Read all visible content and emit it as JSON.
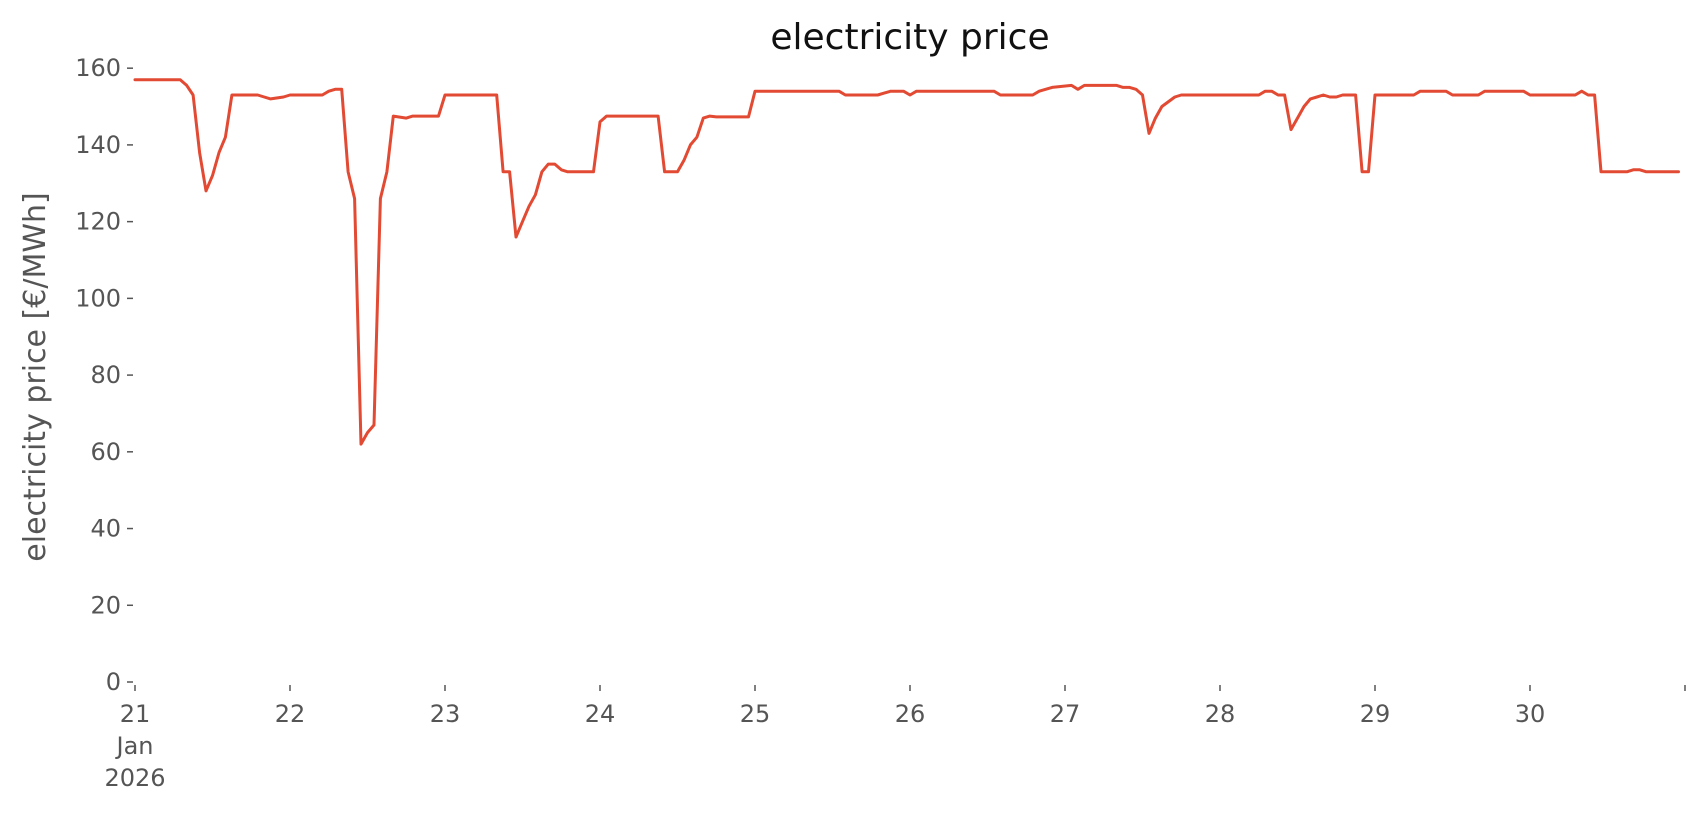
{
  "chart_data": {
    "type": "line",
    "title": "electricity price",
    "xlabel": "",
    "ylabel": "electricity price [€/MWh]",
    "ylim": [
      0,
      165
    ],
    "xlim": [
      "2026-01-21T00:00",
      "2026-01-31T00:00"
    ],
    "grid": false,
    "legend": "none",
    "line_color": "#e24a33",
    "y_ticks": [
      0,
      20,
      40,
      60,
      80,
      100,
      120,
      140,
      160
    ],
    "x_ticks": [
      {
        "date": "2026-01-21",
        "lines": [
          "21",
          "Jan",
          "2026"
        ]
      },
      {
        "date": "2026-01-22",
        "lines": [
          "22"
        ]
      },
      {
        "date": "2026-01-23",
        "lines": [
          "23"
        ]
      },
      {
        "date": "2026-01-24",
        "lines": [
          "24"
        ]
      },
      {
        "date": "2026-01-25",
        "lines": [
          "25"
        ]
      },
      {
        "date": "2026-01-26",
        "lines": [
          "26"
        ]
      },
      {
        "date": "2026-01-27",
        "lines": [
          "27"
        ]
      },
      {
        "date": "2026-01-28",
        "lines": [
          "28"
        ]
      },
      {
        "date": "2026-01-29",
        "lines": [
          "29"
        ]
      },
      {
        "date": "2026-01-30",
        "lines": [
          "30"
        ]
      },
      {
        "date": "2026-01-31",
        "lines": [
          ""
        ]
      }
    ],
    "series": [
      {
        "points": [
          [
            "2026-01-21T00:00",
            157
          ],
          [
            "2026-01-21T07:00",
            157
          ],
          [
            "2026-01-21T08:00",
            155.5
          ],
          [
            "2026-01-21T09:00",
            153
          ],
          [
            "2026-01-21T10:00",
            138
          ],
          [
            "2026-01-21T11:00",
            128
          ],
          [
            "2026-01-21T12:00",
            132
          ],
          [
            "2026-01-21T13:00",
            138
          ],
          [
            "2026-01-21T14:00",
            142
          ],
          [
            "2026-01-21T15:00",
            153
          ],
          [
            "2026-01-21T19:00",
            153
          ],
          [
            "2026-01-21T20:00",
            152.5
          ],
          [
            "2026-01-21T21:00",
            152
          ],
          [
            "2026-01-21T23:00",
            152.5
          ],
          [
            "2026-01-22T00:00",
            153
          ],
          [
            "2026-01-22T05:00",
            153
          ],
          [
            "2026-01-22T06:00",
            154
          ],
          [
            "2026-01-22T07:00",
            154.5
          ],
          [
            "2026-01-22T08:00",
            154.5
          ],
          [
            "2026-01-22T09:00",
            133
          ],
          [
            "2026-01-22T10:00",
            126
          ],
          [
            "2026-01-22T11:00",
            62
          ],
          [
            "2026-01-22T12:00",
            65
          ],
          [
            "2026-01-22T13:00",
            67
          ],
          [
            "2026-01-22T14:00",
            126
          ],
          [
            "2026-01-22T15:00",
            133
          ],
          [
            "2026-01-22T16:00",
            147.5
          ],
          [
            "2026-01-22T18:00",
            147
          ],
          [
            "2026-01-22T19:00",
            147.5
          ],
          [
            "2026-01-22T23:00",
            147.5
          ],
          [
            "2026-01-23T00:00",
            153
          ],
          [
            "2026-01-23T08:00",
            153
          ],
          [
            "2026-01-23T09:00",
            133
          ],
          [
            "2026-01-23T10:00",
            133
          ],
          [
            "2026-01-23T11:00",
            116
          ],
          [
            "2026-01-23T12:00",
            120
          ],
          [
            "2026-01-23T13:00",
            124
          ],
          [
            "2026-01-23T14:00",
            127
          ],
          [
            "2026-01-23T15:00",
            133
          ],
          [
            "2026-01-23T16:00",
            135
          ],
          [
            "2026-01-23T17:00",
            135
          ],
          [
            "2026-01-23T18:00",
            133.5
          ],
          [
            "2026-01-23T19:00",
            133
          ],
          [
            "2026-01-23T23:00",
            133
          ],
          [
            "2026-01-24T00:00",
            146
          ],
          [
            "2026-01-24T01:00",
            147.5
          ],
          [
            "2026-01-24T09:00",
            147.5
          ],
          [
            "2026-01-24T10:00",
            133
          ],
          [
            "2026-01-24T12:00",
            133
          ],
          [
            "2026-01-24T13:00",
            136
          ],
          [
            "2026-01-24T14:00",
            140
          ],
          [
            "2026-01-24T15:00",
            142
          ],
          [
            "2026-01-24T16:00",
            147
          ],
          [
            "2026-01-24T17:00",
            147.5
          ],
          [
            "2026-01-24T18:00",
            147.3
          ],
          [
            "2026-01-24T23:00",
            147.3
          ],
          [
            "2026-01-25T00:00",
            154
          ],
          [
            "2026-01-25T13:00",
            154
          ],
          [
            "2026-01-25T14:00",
            153
          ],
          [
            "2026-01-25T19:00",
            153
          ],
          [
            "2026-01-25T20:00",
            153.5
          ],
          [
            "2026-01-25T21:00",
            154
          ],
          [
            "2026-01-25T23:00",
            154
          ],
          [
            "2026-01-26T00:00",
            153
          ],
          [
            "2026-01-26T01:00",
            154
          ],
          [
            "2026-01-26T13:00",
            154
          ],
          [
            "2026-01-26T14:00",
            153
          ],
          [
            "2026-01-26T19:00",
            153
          ],
          [
            "2026-01-26T20:00",
            154
          ],
          [
            "2026-01-26T21:00",
            154.5
          ],
          [
            "2026-01-26T22:00",
            155
          ],
          [
            "2026-01-27T01:00",
            155.5
          ],
          [
            "2026-01-27T02:00",
            154.5
          ],
          [
            "2026-01-27T03:00",
            155.5
          ],
          [
            "2026-01-27T08:00",
            155.5
          ],
          [
            "2026-01-27T09:00",
            155
          ],
          [
            "2026-01-27T10:00",
            155
          ],
          [
            "2026-01-27T11:00",
            154.5
          ],
          [
            "2026-01-27T12:00",
            153
          ],
          [
            "2026-01-27T13:00",
            143
          ],
          [
            "2026-01-27T14:00",
            147
          ],
          [
            "2026-01-27T15:00",
            150
          ],
          [
            "2026-01-27T17:00",
            152.5
          ],
          [
            "2026-01-27T18:00",
            153
          ],
          [
            "2026-01-28T00:00",
            153
          ],
          [
            "2026-01-28T06:00",
            153
          ],
          [
            "2026-01-28T07:00",
            154
          ],
          [
            "2026-01-28T08:00",
            154
          ],
          [
            "2026-01-28T09:00",
            153
          ],
          [
            "2026-01-28T10:00",
            153
          ],
          [
            "2026-01-28T11:00",
            144
          ],
          [
            "2026-01-28T12:00",
            147
          ],
          [
            "2026-01-28T13:00",
            150
          ],
          [
            "2026-01-28T14:00",
            152
          ],
          [
            "2026-01-28T15:00",
            152.5
          ],
          [
            "2026-01-28T16:00",
            153
          ],
          [
            "2026-01-28T17:00",
            152.5
          ],
          [
            "2026-01-28T18:00",
            152.5
          ],
          [
            "2026-01-28T19:00",
            153
          ],
          [
            "2026-01-28T21:00",
            153
          ],
          [
            "2026-01-28T22:00",
            133
          ],
          [
            "2026-01-28T23:00",
            133
          ],
          [
            "2026-01-29T00:00",
            153
          ],
          [
            "2026-01-29T06:00",
            153
          ],
          [
            "2026-01-29T07:00",
            154
          ],
          [
            "2026-01-29T11:00",
            154
          ],
          [
            "2026-01-29T12:00",
            153
          ],
          [
            "2026-01-29T16:00",
            153
          ],
          [
            "2026-01-29T17:00",
            154
          ],
          [
            "2026-01-29T23:00",
            154
          ],
          [
            "2026-01-30T00:00",
            153
          ],
          [
            "2026-01-30T07:00",
            153
          ],
          [
            "2026-01-30T08:00",
            154
          ],
          [
            "2026-01-30T09:00",
            153
          ],
          [
            "2026-01-30T10:00",
            153
          ],
          [
            "2026-01-30T11:00",
            133
          ],
          [
            "2026-01-30T15:00",
            133
          ],
          [
            "2026-01-30T16:00",
            133.5
          ],
          [
            "2026-01-30T17:00",
            133.5
          ],
          [
            "2026-01-30T18:00",
            133
          ],
          [
            "2026-01-30T23:00",
            133
          ]
        ]
      }
    ]
  }
}
